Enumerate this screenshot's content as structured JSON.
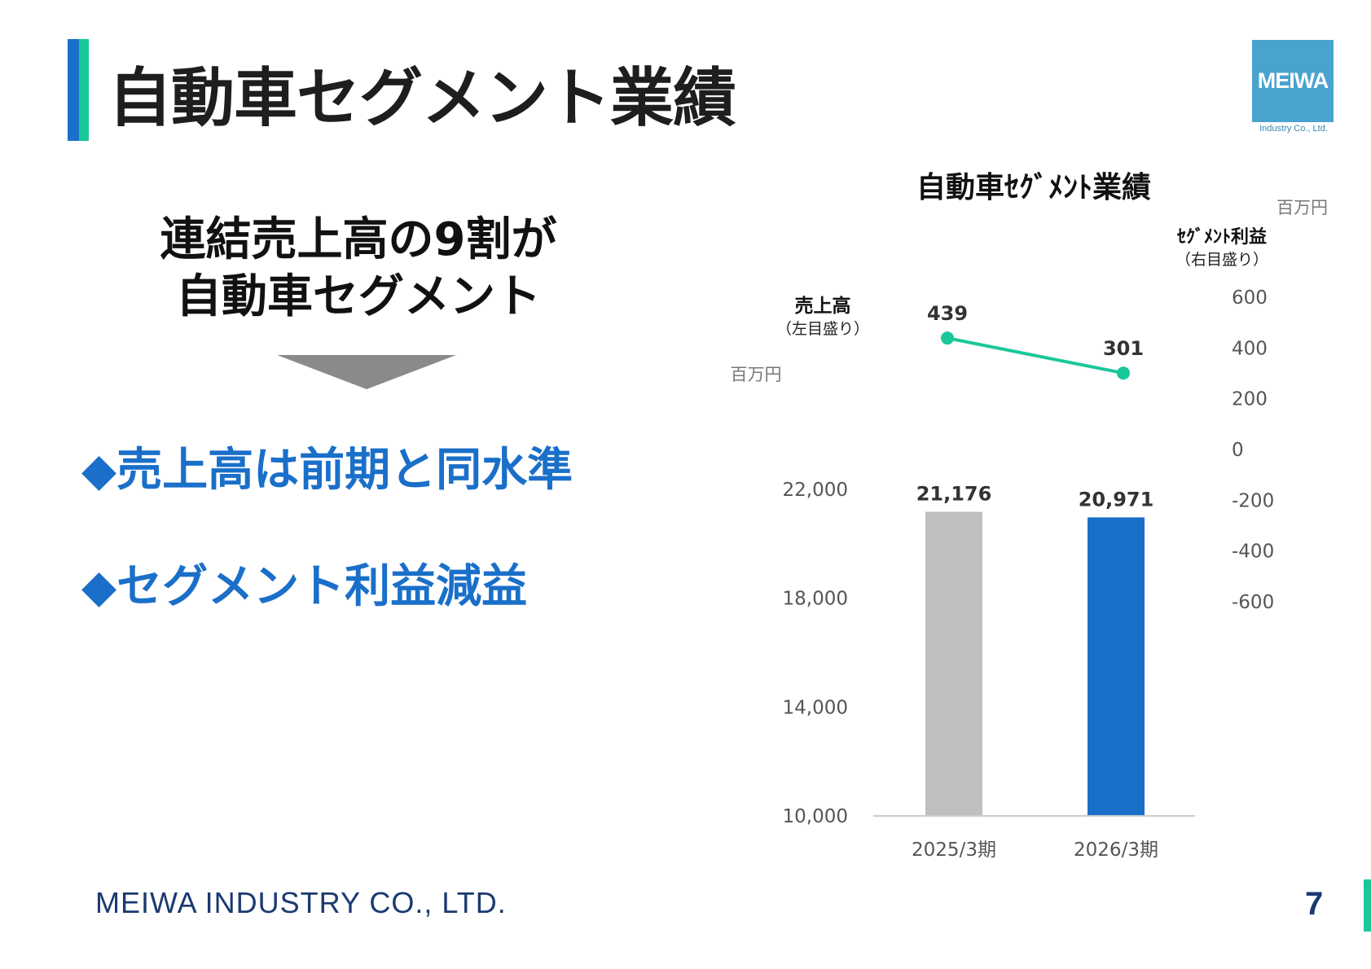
{
  "page": {
    "title": "自動車セグメント業績",
    "logo_text": "MEIWA",
    "logo_subtext": "Industry Co., Ltd.",
    "headline": [
      "連結売上高の9割が",
      "自動車セグメント"
    ],
    "bullets": [
      "◆売上高は前期と同水準",
      "◆セグメント利益減益"
    ],
    "footer_company": "MEIWA INDUSTRY CO., LTD.",
    "page_number": "7"
  },
  "colors": {
    "accent_blue": "#1a6fc9",
    "accent_green": "#19c79a",
    "bar_prev": "#bfbfbf",
    "bar_curr": "#1a6fc9",
    "profit_line": "#19c79a"
  },
  "chart_data": {
    "type": "bar",
    "title": "自動車ｾｸﾞﾒﾝﾄ業績",
    "categories": [
      "2025/3期",
      "2026/3期"
    ],
    "series": [
      {
        "name": "売上高",
        "axis_note": "（左目盛り）",
        "chart_type": "bar",
        "axis": "left",
        "values": [
          21176,
          20971
        ],
        "value_labels": [
          "21,176",
          "20,971"
        ]
      },
      {
        "name": "ｾｸﾞﾒﾝﾄ利益",
        "axis_note": "（右目盛り）",
        "chart_type": "line",
        "axis": "right",
        "values": [
          439,
          301
        ],
        "value_labels": [
          "439",
          "301"
        ]
      }
    ],
    "left_axis": {
      "unit": "百万円",
      "ylim": [
        10000,
        22000
      ],
      "ticks": [
        10000,
        14000,
        18000,
        22000
      ],
      "tick_labels": [
        "10,000",
        "14,000",
        "18,000",
        "22,000"
      ]
    },
    "right_axis": {
      "unit": "百万円",
      "ylim": [
        -600,
        600
      ],
      "ticks": [
        600,
        400,
        200,
        0,
        -200,
        -400,
        -600
      ],
      "tick_labels": [
        "600",
        "400",
        "200",
        "0",
        "-200",
        "-400",
        "-600"
      ]
    },
    "grid": false
  }
}
